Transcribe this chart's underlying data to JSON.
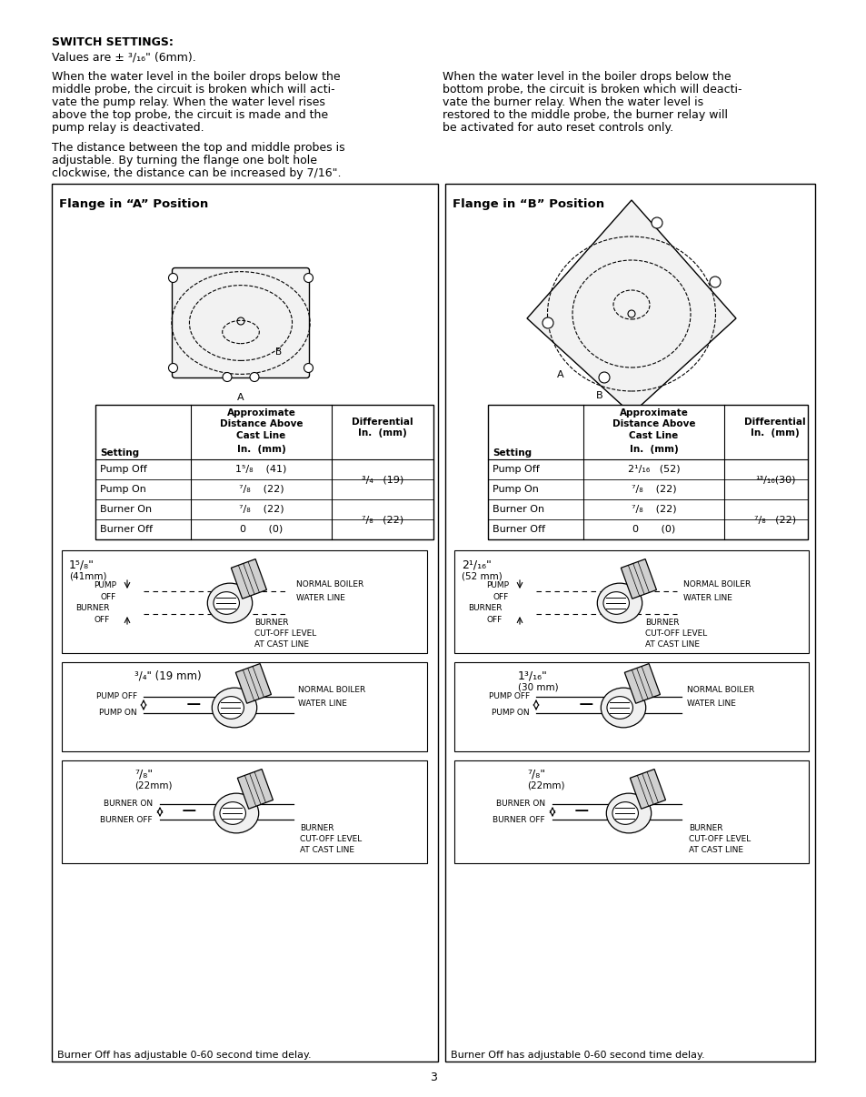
{
  "page_bg": "#ffffff",
  "title_text": "SWITCH SETTINGS:",
  "subtitle_text": "Values are ± ³/₁₆\" (6mm).",
  "para1_col1": [
    "When the water level in the boiler drops below the",
    "middle probe, the circuit is broken which will acti-",
    "vate the pump relay. When the water level rises",
    "above the top probe, the circuit is made and the",
    "pump relay is deactivated."
  ],
  "para1_col2": [
    "When the water level in the boiler drops below the",
    "bottom probe, the circuit is broken which will deacti-",
    "vate the burner relay. When the water level is",
    "restored to the middle probe, the burner relay will",
    "be activated for auto reset controls only."
  ],
  "para2": [
    "The distance between the top and middle probes is",
    "adjustable. By turning the flange one bolt hole",
    "clockwise, the distance can be increased by 7/16\"."
  ],
  "box_A_title": "Flange in “A” Position",
  "box_B_title": "Flange in “B” Position",
  "footer_text": "Burner Off has adjustable 0-60 second time delay.",
  "page_number": "3"
}
